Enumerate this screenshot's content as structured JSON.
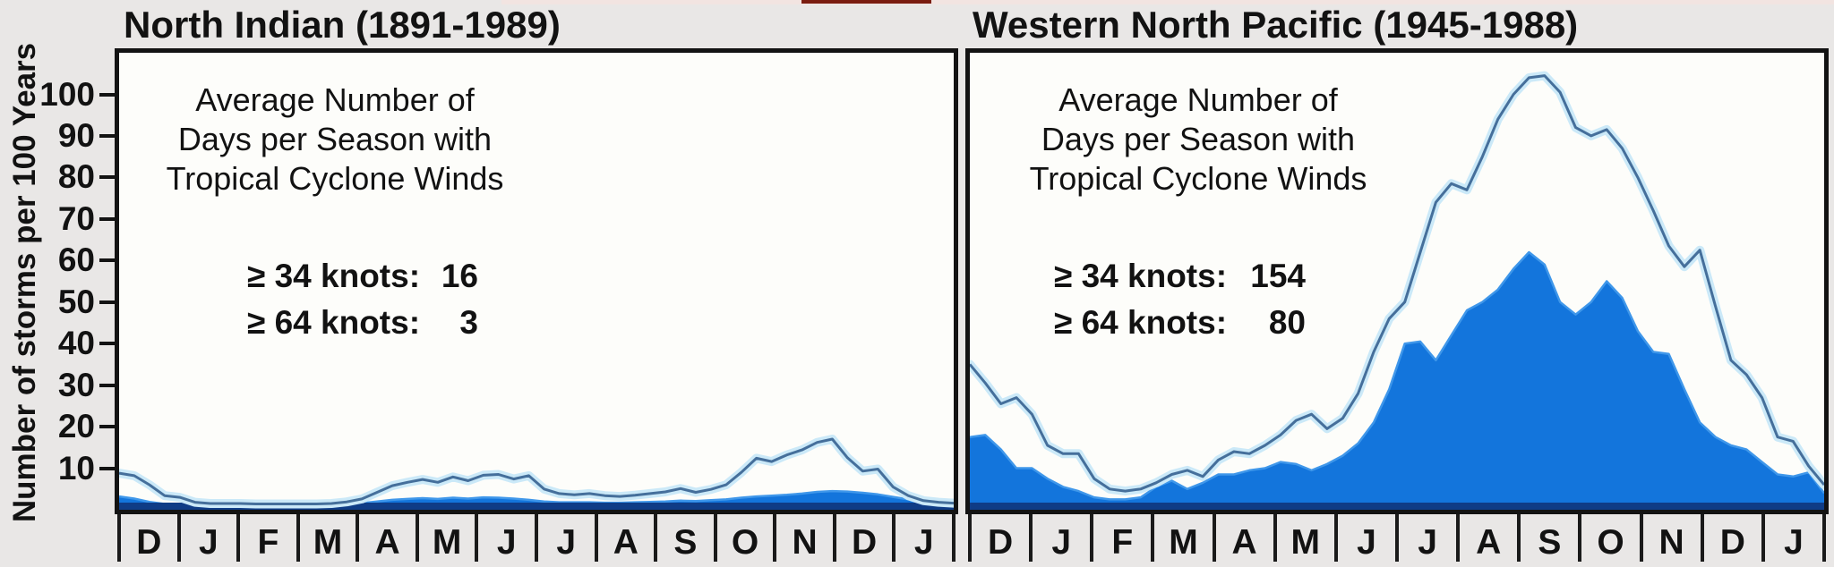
{
  "figure": {
    "y_axis_label": "Number of storms per 100 Years",
    "y_ticks": [
      100,
      90,
      80,
      70,
      60,
      50,
      40,
      30,
      20,
      10
    ],
    "months": [
      "D",
      "J",
      "F",
      "M",
      "A",
      "M",
      "J",
      "J",
      "A",
      "S",
      "O",
      "N",
      "D",
      "J"
    ]
  },
  "colors": {
    "page_bg": "#e9e7e6",
    "plot_bg": "#fdfdfa",
    "fill_blue": "#1375DC",
    "fill_edge": "#3f97ea",
    "outline_line": "#456f9b",
    "outline_halo": "#cbe9f8",
    "baseline_navy": "#0f3c86",
    "text": "#121212",
    "red_streak": "#7a1c10",
    "pink_band": "#f2e4e1"
  },
  "panels": [
    {
      "title": "North Indian (1891-1989)",
      "annotation": [
        "Average Number of",
        "Days per Season with",
        "Tropical Cyclone Winds"
      ],
      "legend": [
        {
          "label": "≥ 34 knots:",
          "value": "16"
        },
        {
          "label": "≥ 64 knots:",
          "value": "3"
        }
      ]
    },
    {
      "title": "Western North Pacific (1945-1988)",
      "annotation": [
        "Average Number of",
        "Days per Season with",
        "Tropical Cyclone Winds"
      ],
      "legend": [
        {
          "label": "≥ 34 knots:",
          "value": "154"
        },
        {
          "label": "≥ 64 knots:",
          "value": "80"
        }
      ]
    }
  ],
  "chart_data": [
    {
      "type": "area",
      "title": "North Indian (1891-1989)",
      "ylabel": "Number of storms per 100 Years",
      "ylim": [
        0,
        110
      ],
      "y_ticks": [
        10,
        20,
        30,
        40,
        50,
        60,
        70,
        80,
        90,
        100
      ],
      "categories": [
        "D",
        "J",
        "F",
        "M",
        "A",
        "M",
        "J",
        "J",
        "A",
        "S",
        "O",
        "N",
        "D",
        "J"
      ],
      "points_per_month": 4,
      "season_totals": {
        "ge34_knots_storms": 16,
        "ge64_knots_storms": 3
      },
      "series": [
        {
          "name": "≥ 34 knots (days per season, per 100 years)",
          "style": "outline",
          "values": [
            8.8,
            8.2,
            6.0,
            3.4,
            3.0,
            1.8,
            1.5,
            1.5,
            1.5,
            1.4,
            1.4,
            1.4,
            1.4,
            1.4,
            1.5,
            1.9,
            2.6,
            4.2,
            5.8,
            6.6,
            7.3,
            6.6,
            7.9,
            7.0,
            8.3,
            8.5,
            7.4,
            8.2,
            5.0,
            3.9,
            3.6,
            3.9,
            3.4,
            3.2,
            3.5,
            3.9,
            4.3,
            5.1,
            4.2,
            4.9,
            6.0,
            9.0,
            12.4,
            11.6,
            13.2,
            14.4,
            16.2,
            17.0,
            12.5,
            9.3,
            9.8,
            5.5,
            3.4,
            2.2,
            1.8,
            1.6
          ]
        },
        {
          "name": "≥ 64 knots (days per season, per 100 years)",
          "style": "filled",
          "values": [
            3.2,
            2.7,
            1.9,
            1.4,
            1.3,
            1.2,
            1.2,
            1.2,
            1.2,
            1.2,
            1.2,
            1.2,
            1.2,
            1.2,
            1.3,
            1.4,
            1.6,
            2.0,
            2.4,
            2.6,
            2.8,
            2.6,
            2.9,
            2.7,
            3.0,
            2.9,
            2.7,
            2.4,
            2.0,
            1.8,
            1.8,
            1.8,
            1.7,
            1.7,
            1.8,
            1.9,
            2.0,
            2.2,
            2.1,
            2.3,
            2.5,
            2.9,
            3.2,
            3.4,
            3.6,
            3.9,
            4.3,
            4.5,
            4.4,
            4.1,
            3.7,
            3.1,
            2.5,
            2.1,
            1.8,
            1.5
          ]
        }
      ]
    },
    {
      "type": "area",
      "title": "Western North Pacific (1945-1988)",
      "ylabel": "Number of storms per 100 Years",
      "ylim": [
        0,
        110
      ],
      "y_ticks": [
        10,
        20,
        30,
        40,
        50,
        60,
        70,
        80,
        90,
        100
      ],
      "categories": [
        "D",
        "J",
        "F",
        "M",
        "A",
        "M",
        "J",
        "J",
        "A",
        "S",
        "O",
        "N",
        "D",
        "J"
      ],
      "points_per_month": 4,
      "season_totals": {
        "ge34_knots_storms": 154,
        "ge64_knots_storms": 80
      },
      "series": [
        {
          "name": "≥ 34 knots (days per season, per 100 years)",
          "style": "outline",
          "values": [
            35,
            30.5,
            25.5,
            27,
            23,
            15.5,
            13.5,
            13.5,
            7.5,
            5,
            4.5,
            5,
            6.5,
            8.5,
            9.5,
            8,
            12,
            14,
            13.5,
            15.5,
            18,
            21.5,
            23,
            19.5,
            22,
            28,
            38,
            46,
            50,
            62,
            74,
            78.5,
            77,
            85,
            94,
            100,
            104,
            104.5,
            100.5,
            92,
            90,
            91.5,
            87,
            80,
            72,
            63.5,
            58.5,
            62.5,
            49,
            36,
            32.5,
            27,
            17.5,
            16.5,
            10.5,
            6
          ]
        },
        {
          "name": "≥ 64 knots (days per season, per 100 years)",
          "style": "filled",
          "values": [
            17.5,
            18,
            14.5,
            10,
            10,
            7.5,
            5.5,
            4.5,
            3,
            2.5,
            2.5,
            3,
            5.5,
            7,
            5,
            6.5,
            8.5,
            8.5,
            9.5,
            10,
            11.5,
            11,
            9.5,
            11,
            13,
            16,
            21,
            29,
            40,
            40.5,
            36,
            42,
            48,
            50,
            53,
            58,
            62,
            59,
            50,
            47,
            50,
            55,
            51,
            43,
            38,
            37.5,
            29,
            21,
            17.5,
            15.5,
            14.5,
            11.5,
            8.5,
            8,
            9,
            4
          ]
        }
      ]
    }
  ]
}
